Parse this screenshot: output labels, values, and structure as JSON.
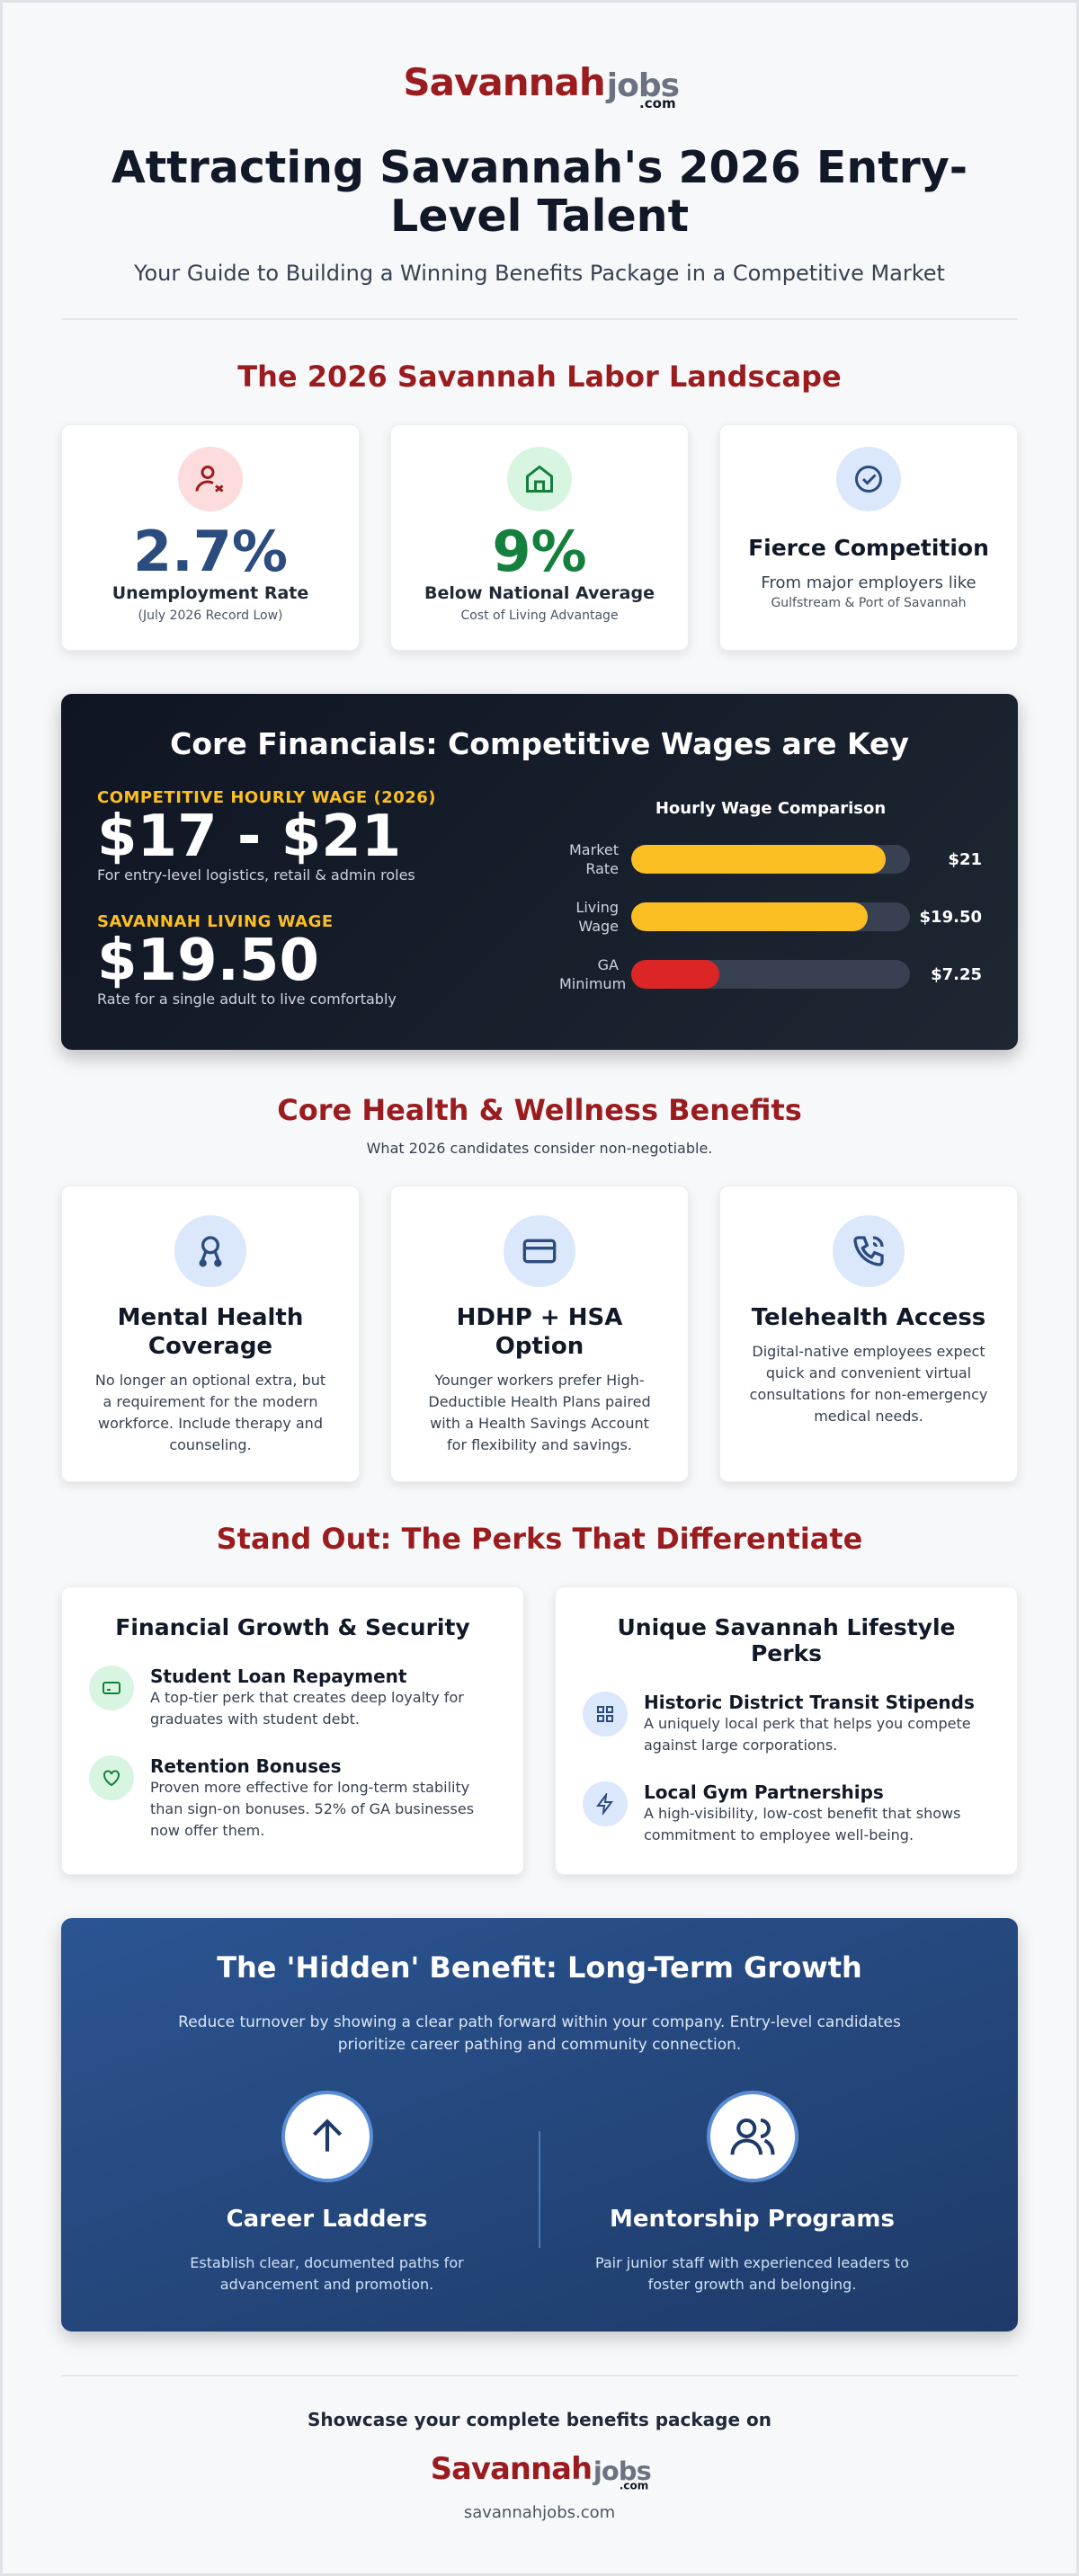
{
  "header": {
    "logo": {
      "name": "Savannah",
      "accent": "jobs",
      "suffix": ".com"
    },
    "title": "Attracting Savannah's 2026 Entry-Level Talent",
    "subtitle": "Your Guide to Building a Winning Benefits Package in a Competitive Market"
  },
  "landscape": {
    "heading": "The 2026 Savannah Labor Landscape",
    "cards": [
      {
        "value": "2.7%",
        "label": "Unemployment Rate",
        "note": "(July 2026 Record Low)"
      },
      {
        "value": "9%",
        "label": "Below National Average",
        "note": "Cost of Living Advantage"
      },
      {
        "title": "Fierce Competition",
        "text": "From major employers like",
        "note": "Gulfstream & Port of Savannah"
      }
    ]
  },
  "financials": {
    "heading": "Core Financials: Competitive Wages are Key",
    "blocks": [
      {
        "label": "COMPETITIVE HOURLY WAGE (2026)",
        "value": "$17 - $21",
        "note": "For entry-level logistics, retail & admin roles"
      },
      {
        "label": "SAVANNAH LIVING WAGE",
        "value": "$19.50",
        "note": "Rate for a single adult to live comfortably"
      }
    ],
    "wage_comparison": {
      "type": "bar",
      "title": "Hourly Wage Comparison",
      "categories": [
        "Market Rate",
        "Living Wage",
        "GA Minimum"
      ],
      "values": [
        21,
        19.5,
        7.25
      ],
      "value_labels": [
        "$21",
        "$19.50",
        "$7.25"
      ],
      "colors": [
        "#fbbf24",
        "#fbbf24",
        "#dc2626"
      ],
      "xlim": [
        0,
        23
      ]
    }
  },
  "health": {
    "heading": "Core Health & Wellness Benefits",
    "subtitle": "What 2026 candidates consider non-negotiable.",
    "cards": [
      {
        "title": "Mental Health Coverage",
        "text": "No longer an optional extra, but a requirement for the modern workforce. Include therapy and counseling."
      },
      {
        "title": "HDHP + HSA Option",
        "text": "Younger workers prefer High-Deductible Health Plans paired with a Health Savings Account for flexibility and savings."
      },
      {
        "title": "Telehealth Access",
        "text": "Digital-native employees expect quick and convenient virtual consultations for non-emergency medical needs."
      }
    ]
  },
  "perks": {
    "heading": "Stand Out: The Perks That Differentiate",
    "groups": [
      {
        "title": "Financial Growth & Security",
        "items": [
          {
            "title": "Student Loan Repayment",
            "text": "A top-tier perk that creates deep loyalty for graduates with student debt."
          },
          {
            "title": "Retention Bonuses",
            "text": "Proven more effective for long-term stability than sign-on bonuses. 52% of GA businesses now offer them."
          }
        ]
      },
      {
        "title": "Unique Savannah Lifestyle Perks",
        "items": [
          {
            "title": "Historic District Transit Stipends",
            "text": "A uniquely local perk that helps you compete against large corporations."
          },
          {
            "title": "Local Gym Partnerships",
            "text": "A high-visibility, low-cost benefit that shows commitment to employee well-being."
          }
        ]
      }
    ]
  },
  "growth": {
    "heading": "The 'Hidden' Benefit: Long-Term Growth",
    "text": "Reduce turnover by showing a clear path forward within your company. Entry-level candidates prioritize career pathing and community connection.",
    "items": [
      {
        "title": "Career Ladders",
        "text": "Establish clear, documented paths for advancement and promotion."
      },
      {
        "title": "Mentorship Programs",
        "text": "Pair junior staff with experienced leaders to foster growth and belonging."
      }
    ]
  },
  "footer": {
    "text": "Showcase your complete benefits package on",
    "url": "savannahjobs.com"
  }
}
